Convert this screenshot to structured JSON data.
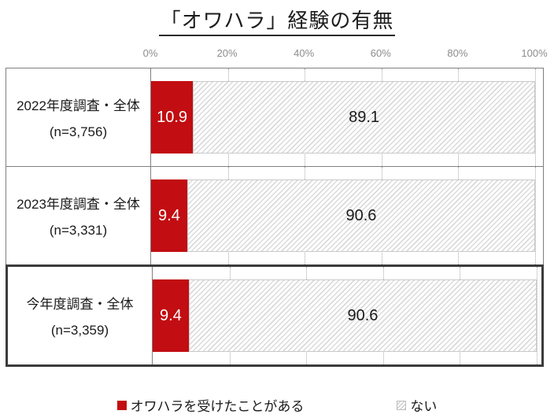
{
  "title": "「オワハラ」経験の有無",
  "axis": {
    "ticks": [
      "0%",
      "20%",
      "40%",
      "60%",
      "80%",
      "100%"
    ],
    "tick_values": [
      0,
      20,
      40,
      60,
      80,
      100
    ]
  },
  "rows": [
    {
      "label_line1": "2022年度調査・全体",
      "label_line2": "(n=3,756)",
      "yes_pct": 10.9,
      "yes_label": "10.9",
      "no_pct": 89.1,
      "no_label": "89.1",
      "highlighted": false
    },
    {
      "label_line1": "2023年度調査・全体",
      "label_line2": "(n=3,331)",
      "yes_pct": 9.4,
      "yes_label": "9.4",
      "no_pct": 90.6,
      "no_label": "90.6",
      "highlighted": false
    },
    {
      "label_line1": "今年度調査・全体",
      "label_line2": "(n=3,359)",
      "yes_pct": 9.4,
      "yes_label": "9.4",
      "no_pct": 90.6,
      "no_label": "90.6",
      "highlighted": true
    }
  ],
  "legend": [
    {
      "label": "オワハラを受けたことがある",
      "swatch": "red"
    },
    {
      "label": "ない",
      "swatch": "hatch"
    }
  ],
  "colors": {
    "bar_red": "#c20d12",
    "hatch_line": "#dadada",
    "row_border": "#7f7f7f",
    "highlight_border": "#3b3b3b",
    "tick_text": "#8c8c8c",
    "gridline": "#a8a8a8"
  },
  "chart_data": {
    "type": "bar",
    "orientation": "horizontal",
    "stacked": true,
    "title": "「オワハラ」経験の有無",
    "categories": [
      "2022年度調査・全体 (n=3,756)",
      "2023年度調査・全体 (n=3,331)",
      "今年度調査・全体 (n=3,359)"
    ],
    "series": [
      {
        "name": "オワハラを受けたことがある",
        "values": [
          10.9,
          9.4,
          9.4
        ],
        "color": "#c20d12",
        "fill": "solid"
      },
      {
        "name": "ない",
        "values": [
          89.1,
          90.6,
          90.6
        ],
        "color": "#dadada",
        "fill": "diagonal-hatch"
      }
    ],
    "xlim": [
      0,
      100
    ],
    "x_ticks": [
      "0%",
      "20%",
      "40%",
      "60%",
      "80%",
      "100%"
    ],
    "grid": "vertical-dotted",
    "legend_position": "bottom",
    "highlighted_category_index": 2
  }
}
